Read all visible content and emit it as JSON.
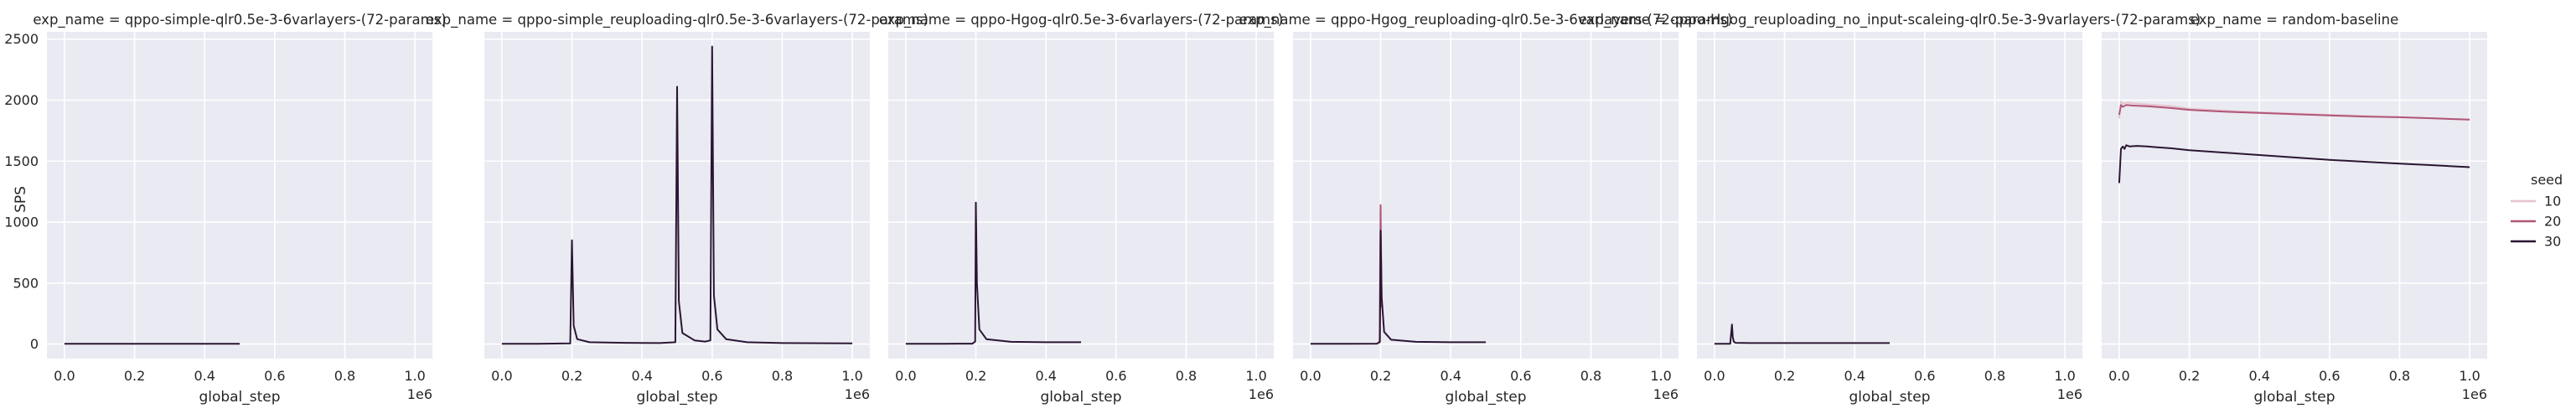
{
  "chart_data": {
    "type": "line",
    "ylabel": "SPS",
    "xlabel": "global_step",
    "x_offset_label": "1e6",
    "ylim": [
      -120,
      2560
    ],
    "xlim": [
      -0.05,
      1.05
    ],
    "x_ticks": [
      0.0,
      0.2,
      0.4,
      0.6,
      0.8,
      1.0
    ],
    "x_tick_labels": [
      "0.0",
      "0.2",
      "0.4",
      "0.6",
      "0.8",
      "1.0"
    ],
    "y_ticks": [
      0,
      500,
      1000,
      1500,
      2000,
      2500
    ],
    "y_tick_labels": [
      "0",
      "500",
      "1000",
      "1500",
      "2000",
      "2500"
    ],
    "grid": true,
    "legend": {
      "title": "seed",
      "placement": "right",
      "entries": [
        {
          "label": "10",
          "color": "#e6c4cc"
        },
        {
          "label": "20",
          "color": "#b05678"
        },
        {
          "label": "30",
          "color": "#2a1633"
        }
      ]
    },
    "panels": [
      {
        "title": "exp_name = qppo-simple-qlr0.5e-3-6varlayers-(72-params)",
        "series": [
          {
            "seed": "30",
            "x": [
              0.0,
              0.1,
              0.2,
              0.3,
              0.4,
              0.5
            ],
            "y": [
              2,
              2,
              2,
              2,
              2,
              2
            ]
          }
        ]
      },
      {
        "title": "exp_name = qppo-simple_reuploading-qlr0.5e-3-6varlayers-(72-params)",
        "series": [
          {
            "seed": "30",
            "x": [
              0.0,
              0.1,
              0.195,
              0.2,
              0.205,
              0.215,
              0.25,
              0.35,
              0.45,
              0.495,
              0.5,
              0.505,
              0.515,
              0.55,
              0.58,
              0.595,
              0.6,
              0.605,
              0.615,
              0.64,
              0.7,
              0.8,
              1.0
            ],
            "y": [
              2,
              2,
              5,
              850,
              150,
              40,
              15,
              10,
              8,
              15,
              2110,
              350,
              90,
              30,
              20,
              30,
              2440,
              400,
              120,
              40,
              15,
              8,
              5
            ]
          }
        ]
      },
      {
        "title": "exp_name = qppo-Hgog-qlr0.5e-3-6varlayers-(72-params)",
        "series": [
          {
            "seed": "30",
            "x": [
              0.0,
              0.1,
              0.19,
              0.198,
              0.2,
              0.203,
              0.21,
              0.23,
              0.3,
              0.4,
              0.5
            ],
            "y": [
              2,
              2,
              3,
              20,
              1160,
              500,
              120,
              40,
              18,
              15,
              15
            ]
          }
        ]
      },
      {
        "title": "exp_name = qppo-Hgog_reuploading-qlr0.5e-3-6varlayers-(72-params)",
        "series": [
          {
            "seed": "20",
            "x": [
              0.197,
              0.2,
              0.203
            ],
            "y": [
              5,
              1140,
              300
            ]
          },
          {
            "seed": "30",
            "x": [
              0.0,
              0.1,
              0.19,
              0.198,
              0.2,
              0.203,
              0.21,
              0.23,
              0.3,
              0.4,
              0.5
            ],
            "y": [
              2,
              2,
              3,
              20,
              930,
              380,
              100,
              35,
              18,
              15,
              15
            ]
          }
        ]
      },
      {
        "title": "exp_name = qppo-Hgog_reuploading_no_input-scaleing-qlr0.5e-3-9varlayers-(72-params)",
        "series": [
          {
            "seed": "30",
            "x": [
              0.0,
              0.045,
              0.05,
              0.052,
              0.055,
              0.06,
              0.1,
              0.2,
              0.3,
              0.4,
              0.5
            ],
            "y": [
              2,
              2,
              160,
              60,
              20,
              10,
              8,
              8,
              8,
              8,
              8
            ]
          }
        ]
      },
      {
        "title": "exp_name = random-baseline",
        "series": [
          {
            "seed": "10",
            "x": [
              0.0,
              0.005,
              0.01,
              0.02,
              0.04,
              0.08,
              0.15,
              0.2,
              0.3,
              0.4,
              0.5,
              0.6,
              0.7,
              0.8,
              0.9,
              1.0
            ],
            "y": [
              1850,
              1990,
              1970,
              1980,
              1975,
              1965,
              1950,
              1930,
              1915,
              1900,
              1890,
              1880,
              1870,
              1860,
              1850,
              1840
            ]
          },
          {
            "seed": "20",
            "x": [
              0.0,
              0.005,
              0.01,
              0.02,
              0.04,
              0.08,
              0.15,
              0.2,
              0.3,
              0.4,
              0.5,
              0.6,
              0.7,
              0.8,
              0.9,
              1.0
            ],
            "y": [
              1880,
              1960,
              1945,
              1960,
              1955,
              1950,
              1935,
              1920,
              1905,
              1895,
              1885,
              1875,
              1865,
              1860,
              1850,
              1840
            ]
          },
          {
            "seed": "30",
            "x": [
              0.0,
              0.005,
              0.01,
              0.015,
              0.02,
              0.03,
              0.05,
              0.08,
              0.1,
              0.15,
              0.2,
              0.3,
              0.4,
              0.5,
              0.6,
              0.7,
              0.8,
              0.9,
              1.0
            ],
            "y": [
              1320,
              1600,
              1620,
              1600,
              1630,
              1620,
              1625,
              1620,
              1615,
              1605,
              1590,
              1570,
              1550,
              1530,
              1510,
              1495,
              1480,
              1465,
              1450
            ]
          }
        ]
      }
    ]
  }
}
